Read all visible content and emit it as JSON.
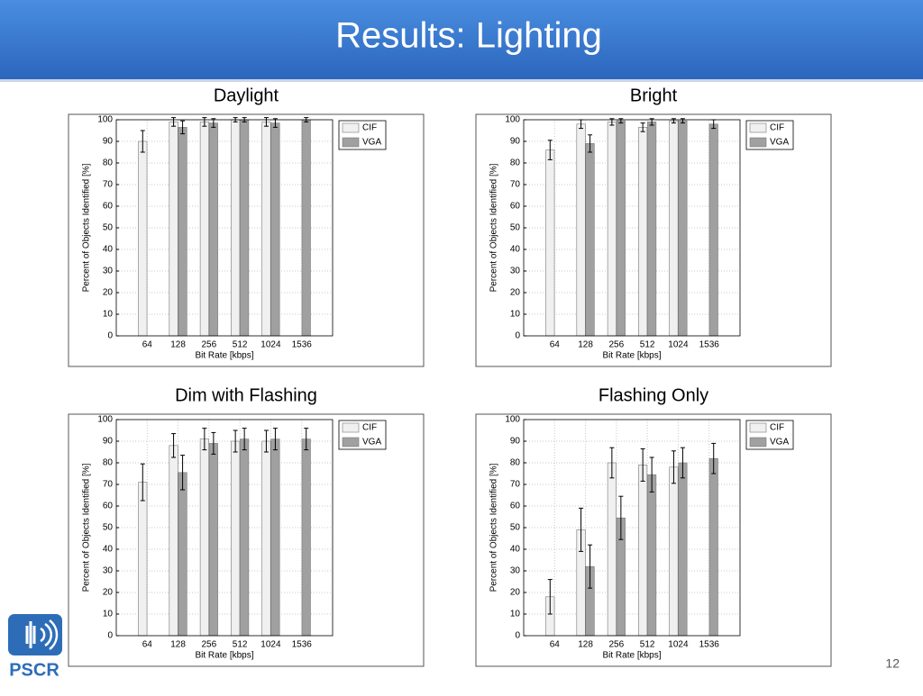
{
  "slide": {
    "title": "Results: Lighting",
    "page_number": "12",
    "logo": "PSCR"
  },
  "chart_data": [
    {
      "type": "bar",
      "title": "Daylight",
      "x_label": "Bit Rate [kbps]",
      "y_label": "Percent of Objects Identified [%]",
      "categories": [
        "64",
        "128",
        "256",
        "512",
        "1024",
        "1536"
      ],
      "ylim": [
        0,
        100
      ],
      "yticks": [
        0,
        10,
        20,
        30,
        40,
        50,
        60,
        70,
        80,
        90,
        100
      ],
      "grid": true,
      "legend": "upper right",
      "series": [
        {
          "name": "CIF",
          "color": "#f0f0f0",
          "values": [
            90,
            99,
            99,
            100,
            99,
            null
          ],
          "errors": [
            5,
            2,
            2,
            1,
            2,
            null
          ]
        },
        {
          "name": "VGA",
          "color": "#a0a0a0",
          "values": [
            null,
            96.5,
            98.5,
            100,
            98.5,
            100
          ],
          "errors": [
            null,
            3,
            2,
            1,
            2,
            1
          ]
        }
      ]
    },
    {
      "type": "bar",
      "title": "Bright",
      "x_label": "Bit Rate [kbps]",
      "y_label": "Percent of Objects Identified [%]",
      "categories": [
        "64",
        "128",
        "256",
        "512",
        "1024",
        "1536"
      ],
      "ylim": [
        0,
        100
      ],
      "yticks": [
        0,
        10,
        20,
        30,
        40,
        50,
        60,
        70,
        80,
        90,
        100
      ],
      "grid": true,
      "legend": "upper right",
      "series": [
        {
          "name": "CIF",
          "color": "#f0f0f0",
          "values": [
            86,
            98,
            99,
            96.5,
            99.5,
            null
          ],
          "errors": [
            4.5,
            2,
            1.5,
            2,
            1,
            null
          ]
        },
        {
          "name": "VGA",
          "color": "#a0a0a0",
          "values": [
            null,
            89,
            99.5,
            99,
            99.5,
            98
          ],
          "errors": [
            null,
            4,
            1,
            1.5,
            1,
            2
          ]
        }
      ]
    },
    {
      "type": "bar",
      "title": "Dim with Flashing",
      "x_label": "Bit Rate [kbps]",
      "y_label": "Percent of Objects Identified [%]",
      "categories": [
        "64",
        "128",
        "256",
        "512",
        "1024",
        "1536"
      ],
      "ylim": [
        0,
        100
      ],
      "yticks": [
        0,
        10,
        20,
        30,
        40,
        50,
        60,
        70,
        80,
        90,
        100
      ],
      "grid": true,
      "legend": "upper right",
      "series": [
        {
          "name": "CIF",
          "color": "#f0f0f0",
          "values": [
            71,
            88,
            91,
            90,
            90,
            null
          ],
          "errors": [
            8.5,
            5.5,
            5,
            5,
            5,
            null
          ]
        },
        {
          "name": "VGA",
          "color": "#a0a0a0",
          "values": [
            null,
            75.5,
            89,
            91,
            91,
            91
          ],
          "errors": [
            null,
            8,
            5,
            5,
            5,
            5
          ]
        }
      ]
    },
    {
      "type": "bar",
      "title": "Flashing Only",
      "x_label": "Bit Rate [kbps]",
      "y_label": "Percent of Objects Identified [%]",
      "categories": [
        "64",
        "128",
        "256",
        "512",
        "1024",
        "1536"
      ],
      "ylim": [
        0,
        100
      ],
      "yticks": [
        0,
        10,
        20,
        30,
        40,
        50,
        60,
        70,
        80,
        90,
        100
      ],
      "grid": true,
      "legend": "upper right",
      "series": [
        {
          "name": "CIF",
          "color": "#f0f0f0",
          "values": [
            18,
            49,
            80,
            79,
            78,
            null
          ],
          "errors": [
            8,
            10,
            7,
            7.5,
            7.5,
            null
          ]
        },
        {
          "name": "VGA",
          "color": "#a0a0a0",
          "values": [
            null,
            32,
            54.5,
            74.5,
            80,
            82
          ],
          "errors": [
            null,
            10,
            10,
            8,
            7,
            7
          ]
        }
      ]
    }
  ]
}
